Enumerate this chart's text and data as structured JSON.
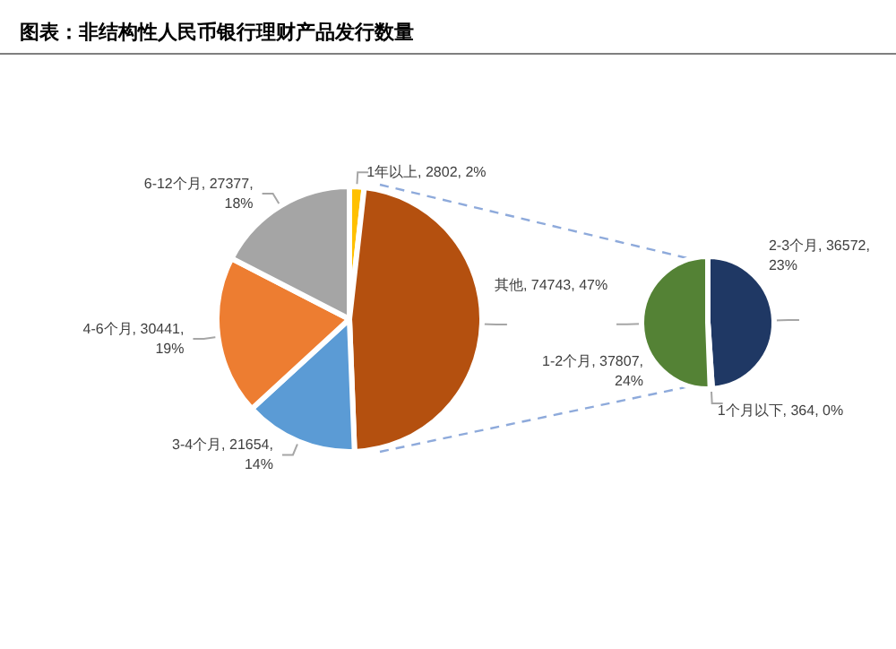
{
  "chart_data": [
    {
      "type": "pie",
      "title": "图表：非结构性人民币银行理财产品发行数量",
      "categories": [
        "1年以上",
        "其他",
        "3-4个月",
        "4-6个月",
        "6-12个月"
      ],
      "values": [
        2802,
        74743,
        21654,
        30441,
        27377
      ],
      "colors": [
        "#ffc000",
        "#b4500f",
        "#5b9bd5",
        "#ed7d31",
        "#a5a5a5"
      ],
      "value_labels": [
        ", 2802, 2%",
        ", 74743, 47%",
        ", 21654,\n14%",
        ", 30441,\n19%",
        ", 27377,\n18%"
      ]
    },
    {
      "type": "pie",
      "categories": [
        "2-3个月",
        "1个月以下",
        "1-2个月"
      ],
      "values": [
        36572,
        364,
        37807
      ],
      "colors": [
        "#1f3864",
        "#2e75b6",
        "#548235"
      ],
      "value_labels": [
        ", 36572,\n23%",
        ", 364, 0%",
        ", 37807,\n24%"
      ]
    }
  ]
}
